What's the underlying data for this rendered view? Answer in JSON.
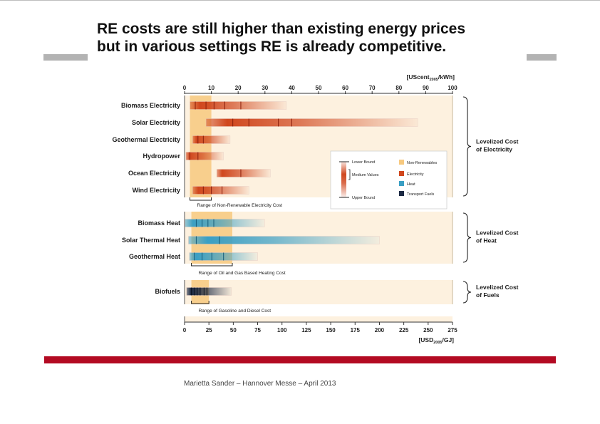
{
  "slide": {
    "title_line1": "RE costs are still higher than existing energy prices",
    "title_line2": "but in various settings RE is already competitive.",
    "footer": "Marietta Sander – Hannover Messe – April 2013"
  },
  "chart_data": {
    "type": "bar",
    "subtype": "range-bar",
    "top_axis": {
      "label": "[UScent2005/kWh]",
      "ticks": [
        "0",
        "10",
        "20",
        "30",
        "40",
        "50",
        "60",
        "70",
        "80",
        "90",
        "100"
      ],
      "range": [
        0,
        100
      ]
    },
    "bottom_axis": {
      "label": "[USD2005/GJ]",
      "ticks": [
        "0",
        "25",
        "50",
        "75",
        "100",
        "125",
        "150",
        "175",
        "200",
        "225",
        "250",
        "275"
      ],
      "range": [
        0,
        275
      ]
    },
    "grid": false,
    "legend_position": "inside-right",
    "colors": {
      "electricity": "#d0471e",
      "heat": "#3a9fc4",
      "transport_fuels": "#1c2a44",
      "non_renewables": "#f7c97f"
    },
    "panels": [
      {
        "group": "Levelized Cost of Electricity",
        "group_line1": "Levelized Cost",
        "group_line2": "of Electricity",
        "unit": "UScent2005/kWh",
        "nonre_range": [
          2,
          10
        ],
        "nonre_label": "Range of Non-Renewable Electricity Cost",
        "rows": [
          {
            "label": "Biomass Electricity",
            "low": 2,
            "high": 38,
            "medians": [
              4,
              8,
              11,
              15,
              21
            ]
          },
          {
            "label": "Solar Electricity",
            "low": 8,
            "high": 87,
            "medians": [
              18,
              24,
              35,
              40
            ]
          },
          {
            "label": "Geothermal Electricity",
            "low": 3,
            "high": 17,
            "medians": [
              5,
              7
            ]
          },
          {
            "label": "Hydropower",
            "low": 0.5,
            "high": 14.5,
            "medians": [
              2,
              5
            ]
          },
          {
            "label": "Ocean Electricity",
            "low": 12,
            "high": 32,
            "medians": [
              21
            ]
          },
          {
            "label": "Wind Electricity",
            "low": 3,
            "high": 24,
            "medians": [
              7,
              10,
              14
            ]
          }
        ]
      },
      {
        "group": "Levelized Cost of Heat",
        "group_line1": "Levelized Cost",
        "group_line2": "of Heat",
        "unit": "USD2005/GJ",
        "nonre_range": [
          7,
          49
        ],
        "nonre_label": "Range of Oil and Gas Based Heating Cost",
        "rows": [
          {
            "label": "Biomass Heat",
            "low": 0.5,
            "high": 82,
            "medians": [
              12,
              18,
              24,
              30
            ]
          },
          {
            "label": "Solar Thermal Heat",
            "low": 4,
            "high": 200,
            "medians": [
              12,
              36
            ]
          },
          {
            "label": "Geothermal Heat",
            "low": 5,
            "high": 75,
            "medians": [
              10,
              18,
              28,
              40
            ]
          }
        ]
      },
      {
        "group": "Levelized Cost of Fuels",
        "group_line1": "Levelized Cost",
        "group_line2": "of Fuels",
        "unit": "USD2005/GJ",
        "nonre_range": [
          7,
          25
        ],
        "nonre_label": "Range of Gasoline and Diesel Cost",
        "rows": [
          {
            "label": "Biofuels",
            "low": 2,
            "high": 48,
            "medians": [
              7,
              10,
              13,
              16,
              20,
              23
            ]
          }
        ]
      }
    ],
    "legend": {
      "lower_bound": "Lower Bound",
      "medium_values": "Medium Values",
      "upper_bound": "Upper Bound",
      "non_renewables": "Non-Renewables",
      "electricity": "Electricity",
      "heat": "Heat",
      "transport_fuels": "Transport Fuels"
    }
  }
}
